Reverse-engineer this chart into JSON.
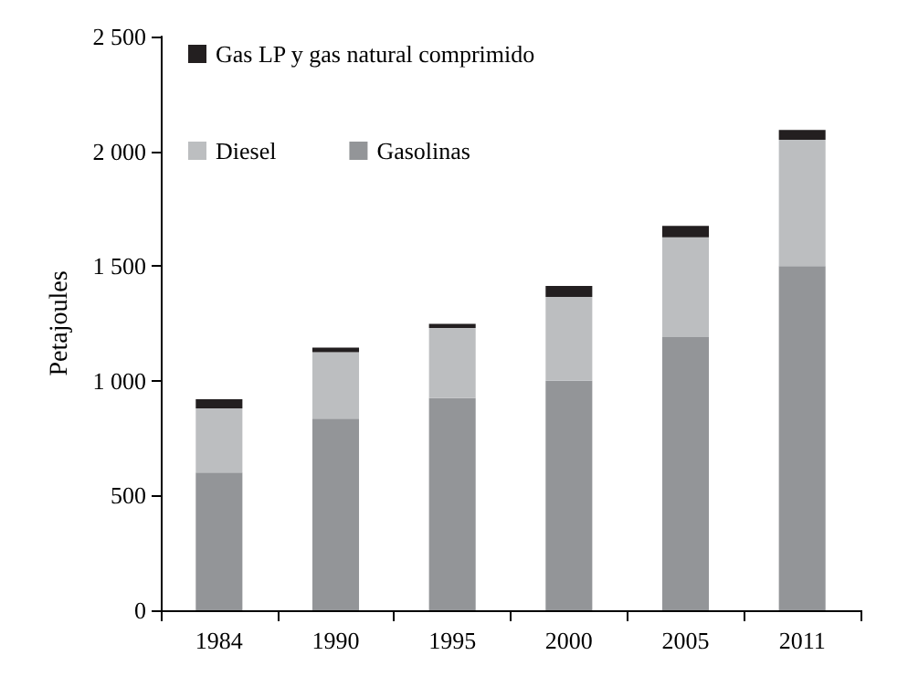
{
  "chart_data": {
    "type": "bar",
    "stacked": true,
    "ylabel": "Petajoules",
    "categories": [
      "1984",
      "1990",
      "1995",
      "2000",
      "2005",
      "2011"
    ],
    "series": [
      {
        "name": "Gasolinas",
        "color": "#939598",
        "values": [
          600,
          835,
          925,
          1000,
          1190,
          1500
        ]
      },
      {
        "name": "Diesel",
        "color": "#bcbec0",
        "values": [
          280,
          290,
          305,
          365,
          435,
          550
        ]
      },
      {
        "name": "Gas LP y gas natural comprimido",
        "color": "#231f20",
        "values": [
          40,
          20,
          18,
          48,
          50,
          43
        ]
      }
    ],
    "ylim": [
      0,
      2500
    ],
    "yticks": [
      0,
      500,
      {
        "value": 1000,
        "label": "1 000"
      },
      {
        "value": 1500,
        "label": "1 500"
      },
      {
        "value": 2000,
        "label": "2 000"
      },
      {
        "value": 2500,
        "label": "2 500"
      }
    ],
    "grid": false,
    "legend": "top left"
  }
}
